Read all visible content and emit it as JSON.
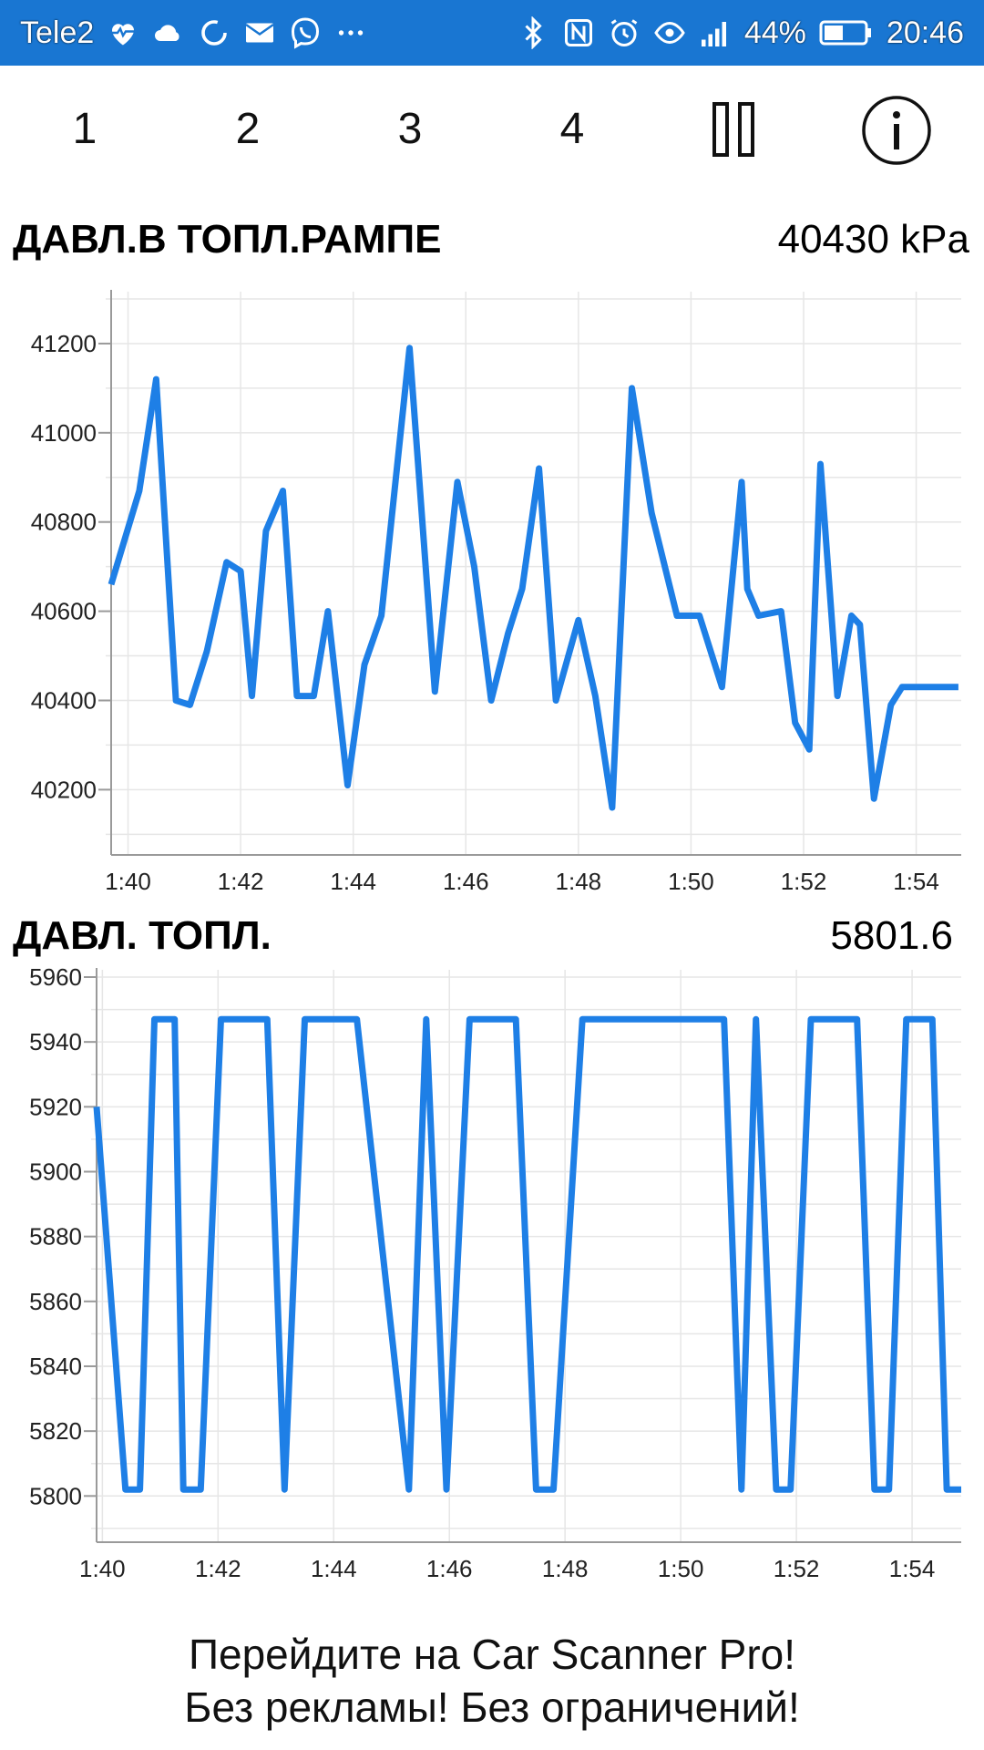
{
  "status_bar": {
    "carrier": "Tele2",
    "battery": "44%",
    "time": "20:46",
    "left_icons": [
      "heart-pulse-icon",
      "cloud-icon",
      "sync-icon",
      "mail-icon",
      "viber-icon",
      "more-icon"
    ],
    "right_icons": [
      "bluetooth-icon",
      "nfc-icon",
      "alarm-icon",
      "eye-icon",
      "signal-icon",
      "battery-icon"
    ]
  },
  "toolbar": {
    "tabs": [
      "1",
      "2",
      "3",
      "4"
    ],
    "pause_icon": "pause-icon",
    "info_icon": "info-icon"
  },
  "charts": [
    {
      "title": "ДАВЛ.В ТОПЛ.РАМПЕ",
      "value": "40430 kPa"
    },
    {
      "title": "ДАВЛ. ТОПЛ.",
      "value": "5801.6"
    }
  ],
  "chart_data": [
    {
      "type": "line",
      "title": "ДАВЛ.В ТОПЛ.РАМПЕ",
      "x_ticks": [
        "1:40",
        "1:42",
        "1:44",
        "1:46",
        "1:48",
        "1:50",
        "1:52",
        "1:54"
      ],
      "y_ticks": [
        40200,
        40400,
        40600,
        40800,
        41000,
        41200
      ],
      "ylim": [
        40070,
        41300
      ],
      "xlim": [
        99.7,
        114.8
      ],
      "grid": true,
      "line_color": "#1e7fe6",
      "series": [
        {
          "x": [
            99.7,
            100.2,
            100.5,
            100.85,
            101.1,
            101.4,
            101.75,
            102.0,
            102.2,
            102.45,
            102.75,
            103.0,
            103.3,
            103.55,
            103.9,
            104.2,
            104.5,
            105.0,
            105.45,
            105.85,
            106.15,
            106.45,
            106.75,
            107.0,
            107.3,
            107.6,
            108.0,
            108.3,
            108.6,
            108.95,
            109.3,
            109.75,
            110.15,
            110.55,
            110.9,
            111.0,
            111.2,
            111.6,
            111.85,
            112.1,
            112.3,
            112.6,
            112.85,
            113.0,
            113.25,
            113.55,
            113.75,
            114.0,
            114.35,
            114.75
          ],
          "y": [
            40660,
            40870,
            41120,
            40400,
            40390,
            40510,
            40710,
            40690,
            40410,
            40780,
            40870,
            40410,
            40410,
            40600,
            40210,
            40480,
            40590,
            41190,
            40420,
            40890,
            40700,
            40400,
            40550,
            40650,
            40920,
            40400,
            40580,
            40410,
            40160,
            41100,
            40820,
            40590,
            40590,
            40430,
            40890,
            40650,
            40590,
            40600,
            40350,
            40290,
            40930,
            40410,
            40590,
            40570,
            40180,
            40390,
            40430,
            40430,
            40430,
            40430
          ]
        }
      ]
    },
    {
      "type": "line",
      "title": "ДАВЛ. ТОПЛ.",
      "x_ticks": [
        "1:40",
        "1:42",
        "1:44",
        "1:46",
        "1:48",
        "1:50",
        "1:52",
        "1:54"
      ],
      "y_ticks": [
        5800,
        5820,
        5840,
        5860,
        5880,
        5900,
        5920,
        5940,
        5960
      ],
      "ylim": [
        5788,
        5960
      ],
      "xlim": [
        99.9,
        114.85
      ],
      "grid": true,
      "line_color": "#1e7fe6",
      "series": [
        {
          "x": [
            99.9,
            100.4,
            100.65,
            100.9,
            101.25,
            101.4,
            101.7,
            102.05,
            102.85,
            103.15,
            103.5,
            104.4,
            105.3,
            105.6,
            105.95,
            106.35,
            107.15,
            107.5,
            107.8,
            108.3,
            110.75,
            111.05,
            111.3,
            111.65,
            111.9,
            112.25,
            113.05,
            113.35,
            113.6,
            113.9,
            114.35,
            114.6,
            114.85
          ],
          "y": [
            5920,
            5802,
            5802,
            5947,
            5947,
            5802,
            5802,
            5947,
            5947,
            5802,
            5947,
            5947,
            5802,
            5947,
            5802,
            5947,
            5947,
            5802,
            5802,
            5947,
            5947,
            5802,
            5947,
            5802,
            5802,
            5947,
            5947,
            5802,
            5802,
            5947,
            5947,
            5802,
            5802
          ]
        }
      ]
    }
  ],
  "promo": {
    "line1": "Перейдите на Car Scanner Pro!",
    "line2": "Без рекламы! Без ограничений!"
  }
}
